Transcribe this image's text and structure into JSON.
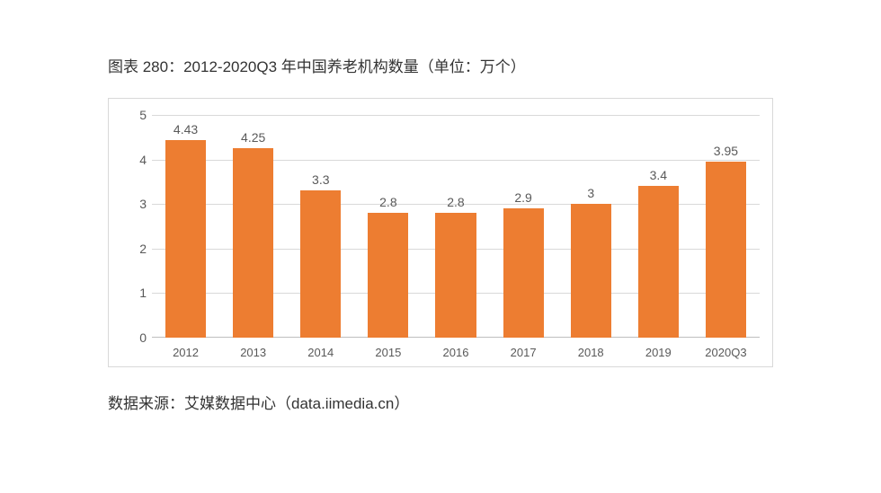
{
  "title": "图表 280：2012-2020Q3 年中国养老机构数量（单位：万个）",
  "source": "数据来源：艾媒数据中心（data.iimedia.cn）",
  "chart": {
    "type": "bar",
    "categories": [
      "2012",
      "2013",
      "2014",
      "2015",
      "2016",
      "2017",
      "2018",
      "2019",
      "2020Q3"
    ],
    "values": [
      4.43,
      4.25,
      3.3,
      2.8,
      2.8,
      2.9,
      3,
      3.4,
      3.95
    ],
    "value_labels": [
      "4.43",
      "4.25",
      "3.3",
      "2.8",
      "2.8",
      "2.9",
      "3",
      "3.4",
      "3.95"
    ],
    "bar_color": "#ed7d31",
    "ylim": [
      0,
      5
    ],
    "ytick_step": 1,
    "yticks": [
      "0",
      "1",
      "2",
      "3",
      "4",
      "5"
    ],
    "grid_color": "#d9d9d9",
    "border_color": "#d9d9d9",
    "background_color": "#ffffff",
    "label_color": "#595959",
    "label_fontsize": 14,
    "bar_width": 0.6
  }
}
